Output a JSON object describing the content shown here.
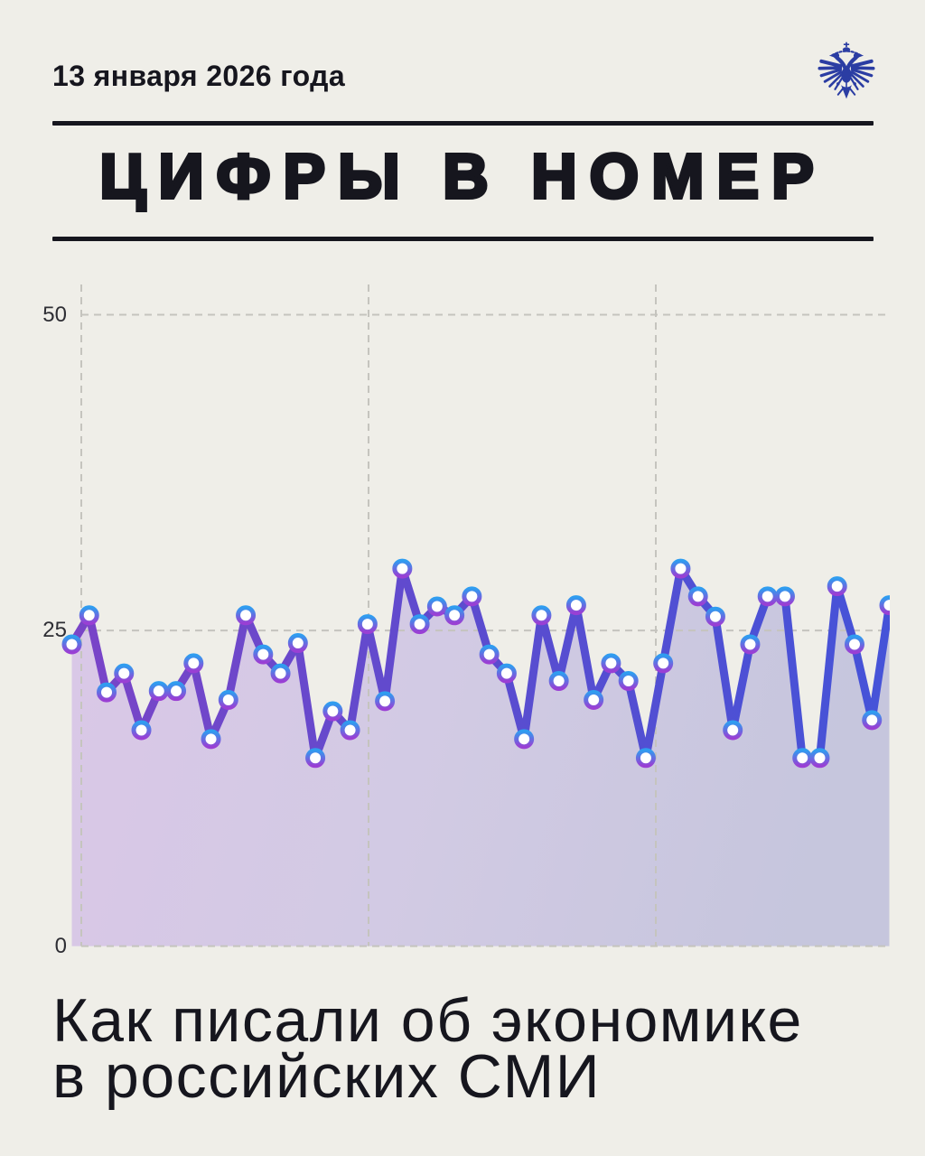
{
  "page": {
    "background_color": "#efeee8"
  },
  "header": {
    "date": "13 января 2026 года",
    "emblem": "double-headed-eagle-coat-of-arms",
    "emblem_color": "#2b3da3"
  },
  "title": {
    "text": "ЦИФРЫ В НОМЕР"
  },
  "chart_data": {
    "type": "area",
    "title": "",
    "xlabel": "",
    "ylabel": "",
    "x": [
      1,
      2,
      3,
      4,
      5,
      6,
      7,
      8,
      9,
      10,
      11,
      12,
      13,
      14,
      15,
      16,
      17,
      18,
      19,
      20,
      21,
      22,
      23,
      24,
      25,
      26,
      27,
      28,
      29,
      30,
      31,
      32,
      33,
      34,
      35,
      36,
      37,
      38,
      39,
      40,
      41,
      42,
      43,
      44,
      45,
      46,
      47,
      48
    ],
    "values": [
      23.9,
      26.2,
      20.1,
      21.6,
      17.1,
      20.2,
      20.2,
      22.4,
      16.4,
      19.5,
      26.2,
      23.1,
      21.6,
      24.0,
      14.9,
      18.6,
      17.1,
      25.5,
      19.4,
      29.9,
      25.5,
      26.9,
      26.2,
      27.7,
      23.1,
      21.6,
      16.4,
      26.2,
      21.0,
      27.0,
      19.5,
      22.4,
      21.0,
      14.9,
      22.4,
      29.9,
      27.7,
      26.1,
      17.1,
      23.9,
      27.7,
      27.7,
      14.9,
      14.9,
      28.5,
      23.9,
      17.9,
      27.0
    ],
    "yticks": [
      0,
      25,
      50
    ],
    "ylim": [
      0,
      52.4
    ],
    "xticklabels": [],
    "grid": {
      "horizontal_dashed": true,
      "vertical_dashed": true,
      "legend": "none"
    },
    "colors": {
      "line_gradient": [
        "#7a44c7",
        "#5b4ccf",
        "#4553d8"
      ],
      "fill_gradient": [
        "#d8c4e7",
        "#cfc7e3",
        "#c2c2dc"
      ],
      "marker_fill": "#ffffff",
      "marker_stroke_gradient": [
        "#2f9df0",
        "#9a3fd4"
      ],
      "grid_color": "#c5c4be",
      "tick_text_color": "#2e2e34"
    }
  },
  "footer": {
    "line1": "Как писали об экономике",
    "line2": "в российских СМИ"
  }
}
